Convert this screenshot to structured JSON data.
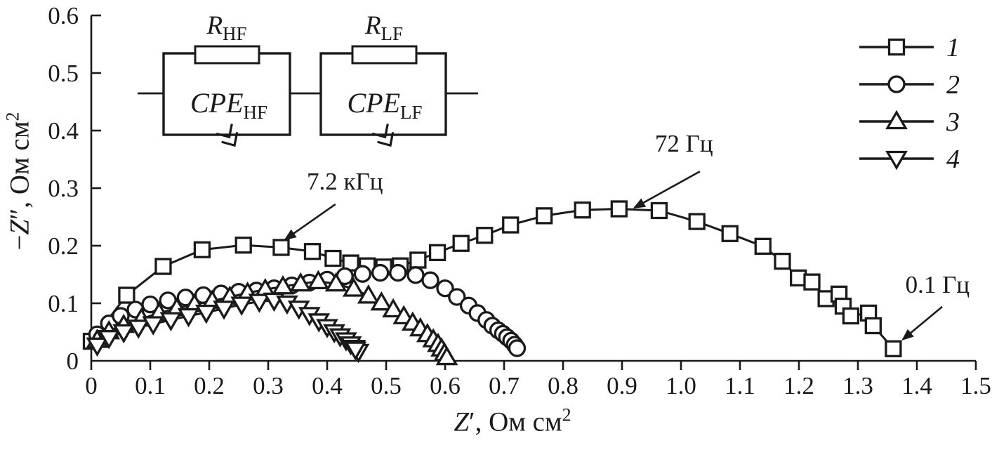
{
  "figure": {
    "background": "#ffffff",
    "line_color": "#1a1a1a"
  },
  "chart_data": {
    "type": "scatter",
    "description": "Nyquist impedance spectra with equivalent circuit inset",
    "x_title": {
      "pre": "",
      "var": "Z",
      "prime": "′",
      "rest": ", Ом см",
      "sup": "2"
    },
    "y_title": {
      "pre": "−",
      "var": "Z",
      "prime": "″",
      "rest": ", Ом см",
      "sup": "2"
    },
    "xlim": [
      0,
      1.5
    ],
    "ylim": [
      0,
      0.6
    ],
    "grid": false,
    "x_ticks": [
      {
        "v": 0.0,
        "label": "0"
      },
      {
        "v": 0.1,
        "label": "0.1"
      },
      {
        "v": 0.2,
        "label": "0.2"
      },
      {
        "v": 0.3,
        "label": "0.3"
      },
      {
        "v": 0.4,
        "label": "0.4"
      },
      {
        "v": 0.5,
        "label": "0.5"
      },
      {
        "v": 0.6,
        "label": "0.6"
      },
      {
        "v": 0.7,
        "label": "0.7"
      },
      {
        "v": 0.8,
        "label": "0.8"
      },
      {
        "v": 0.9,
        "label": "0.9"
      },
      {
        "v": 1.0,
        "label": "1.0"
      },
      {
        "v": 1.1,
        "label": "1.1"
      },
      {
        "v": 1.2,
        "label": "1.2"
      },
      {
        "v": 1.3,
        "label": "1.3"
      },
      {
        "v": 1.4,
        "label": "1.4"
      },
      {
        "v": 1.5,
        "label": "1.5"
      }
    ],
    "y_ticks": [
      {
        "v": 0.0,
        "label": "0"
      },
      {
        "v": 0.1,
        "label": "0.1"
      },
      {
        "v": 0.2,
        "label": "0.2"
      },
      {
        "v": 0.3,
        "label": "0.3"
      },
      {
        "v": 0.4,
        "label": "0.4"
      },
      {
        "v": 0.5,
        "label": "0.5"
      },
      {
        "v": 0.6,
        "label": "0.6"
      }
    ],
    "series": [
      {
        "name": "1",
        "marker": "square",
        "points": [
          [
            0.0,
            0.034
          ],
          [
            0.06,
            0.114
          ],
          [
            0.122,
            0.164
          ],
          [
            0.188,
            0.193
          ],
          [
            0.258,
            0.201
          ],
          [
            0.322,
            0.197
          ],
          [
            0.375,
            0.19
          ],
          [
            0.41,
            0.178
          ],
          [
            0.44,
            0.17
          ],
          [
            0.468,
            0.165
          ],
          [
            0.496,
            0.163
          ],
          [
            0.524,
            0.165
          ],
          [
            0.554,
            0.175
          ],
          [
            0.587,
            0.188
          ],
          [
            0.627,
            0.204
          ],
          [
            0.667,
            0.218
          ],
          [
            0.711,
            0.236
          ],
          [
            0.768,
            0.252
          ],
          [
            0.833,
            0.262
          ],
          [
            0.895,
            0.264
          ],
          [
            0.963,
            0.261
          ],
          [
            1.027,
            0.242
          ],
          [
            1.083,
            0.221
          ],
          [
            1.139,
            0.199
          ],
          [
            1.172,
            0.173
          ],
          [
            1.199,
            0.144
          ],
          [
            1.222,
            0.137
          ],
          [
            1.246,
            0.108
          ],
          [
            1.268,
            0.116
          ],
          [
            1.275,
            0.095
          ],
          [
            1.288,
            0.078
          ],
          [
            1.318,
            0.083
          ],
          [
            1.326,
            0.061
          ],
          [
            1.36,
            0.021
          ]
        ]
      },
      {
        "name": "2",
        "marker": "circle",
        "points": [
          [
            0.01,
            0.046
          ],
          [
            0.03,
            0.065
          ],
          [
            0.05,
            0.078
          ],
          [
            0.075,
            0.089
          ],
          [
            0.1,
            0.098
          ],
          [
            0.13,
            0.105
          ],
          [
            0.16,
            0.11
          ],
          [
            0.19,
            0.114
          ],
          [
            0.22,
            0.117
          ],
          [
            0.25,
            0.12
          ],
          [
            0.28,
            0.122
          ],
          [
            0.31,
            0.126
          ],
          [
            0.34,
            0.131
          ],
          [
            0.37,
            0.136
          ],
          [
            0.4,
            0.141
          ],
          [
            0.43,
            0.147
          ],
          [
            0.46,
            0.151
          ],
          [
            0.49,
            0.153
          ],
          [
            0.52,
            0.153
          ],
          [
            0.55,
            0.149
          ],
          [
            0.575,
            0.14
          ],
          [
            0.6,
            0.126
          ],
          [
            0.62,
            0.111
          ],
          [
            0.64,
            0.096
          ],
          [
            0.655,
            0.083
          ],
          [
            0.67,
            0.071
          ],
          [
            0.68,
            0.061
          ],
          [
            0.69,
            0.053
          ],
          [
            0.698,
            0.047
          ],
          [
            0.705,
            0.041
          ],
          [
            0.712,
            0.035
          ],
          [
            0.718,
            0.028
          ],
          [
            0.722,
            0.022
          ]
        ]
      },
      {
        "name": "3",
        "marker": "triangle-up",
        "points": [
          [
            0.01,
            0.036
          ],
          [
            0.03,
            0.051
          ],
          [
            0.055,
            0.062
          ],
          [
            0.085,
            0.073
          ],
          [
            0.115,
            0.083
          ],
          [
            0.145,
            0.091
          ],
          [
            0.175,
            0.098
          ],
          [
            0.205,
            0.104
          ],
          [
            0.235,
            0.111
          ],
          [
            0.265,
            0.118
          ],
          [
            0.295,
            0.124
          ],
          [
            0.325,
            0.129
          ],
          [
            0.355,
            0.134
          ],
          [
            0.385,
            0.138
          ],
          [
            0.415,
            0.134
          ],
          [
            0.445,
            0.125
          ],
          [
            0.47,
            0.113
          ],
          [
            0.492,
            0.101
          ],
          [
            0.512,
            0.089
          ],
          [
            0.53,
            0.077
          ],
          [
            0.545,
            0.066
          ],
          [
            0.558,
            0.056
          ],
          [
            0.57,
            0.046
          ],
          [
            0.58,
            0.037
          ],
          [
            0.588,
            0.029
          ],
          [
            0.594,
            0.021
          ],
          [
            0.599,
            0.013
          ],
          [
            0.603,
            0.006
          ]
        ]
      },
      {
        "name": "4",
        "marker": "triangle-down",
        "points": [
          [
            0.01,
            0.027
          ],
          [
            0.03,
            0.04
          ],
          [
            0.055,
            0.05
          ],
          [
            0.08,
            0.058
          ],
          [
            0.105,
            0.064
          ],
          [
            0.135,
            0.071
          ],
          [
            0.165,
            0.078
          ],
          [
            0.195,
            0.084
          ],
          [
            0.225,
            0.091
          ],
          [
            0.255,
            0.098
          ],
          [
            0.285,
            0.103
          ],
          [
            0.31,
            0.105
          ],
          [
            0.332,
            0.1
          ],
          [
            0.352,
            0.091
          ],
          [
            0.37,
            0.08
          ],
          [
            0.386,
            0.069
          ],
          [
            0.4,
            0.059
          ],
          [
            0.412,
            0.05
          ],
          [
            0.422,
            0.043
          ],
          [
            0.432,
            0.036
          ],
          [
            0.44,
            0.029
          ],
          [
            0.447,
            0.023
          ],
          [
            0.453,
            0.016
          ],
          [
            0.448,
            0.02
          ]
        ]
      }
    ],
    "legend": {
      "items": [
        {
          "label": "1",
          "marker": "square"
        },
        {
          "label": "2",
          "marker": "circle"
        },
        {
          "label": "3",
          "marker": "triangle-up"
        },
        {
          "label": "4",
          "marker": "triangle-down"
        }
      ]
    },
    "annotations": [
      {
        "text": "7.2 кГц",
        "text_x": 0.43,
        "text_y": 0.312,
        "from_x": 0.414,
        "from_y": 0.272,
        "to_x": 0.329,
        "to_y": 0.211
      },
      {
        "text": "72 Гц",
        "text_x": 1.005,
        "text_y": 0.378,
        "from_x": 1.032,
        "from_y": 0.329,
        "to_x": 0.921,
        "to_y": 0.266
      },
      {
        "text": "0.1 Гц",
        "text_x": 1.435,
        "text_y": 0.133,
        "from_x": 1.443,
        "from_y": 0.094,
        "to_x": 1.376,
        "to_y": 0.037
      }
    ],
    "circuit": {
      "elements": [
        {
          "id": "r-hf",
          "base": "R",
          "sub": "HF"
        },
        {
          "id": "cpe-hf",
          "base": "CPE",
          "sub": "HF"
        },
        {
          "id": "r-lf",
          "base": "R",
          "sub": "LF"
        },
        {
          "id": "cpe-lf",
          "base": "CPE",
          "sub": "LF"
        }
      ]
    }
  }
}
